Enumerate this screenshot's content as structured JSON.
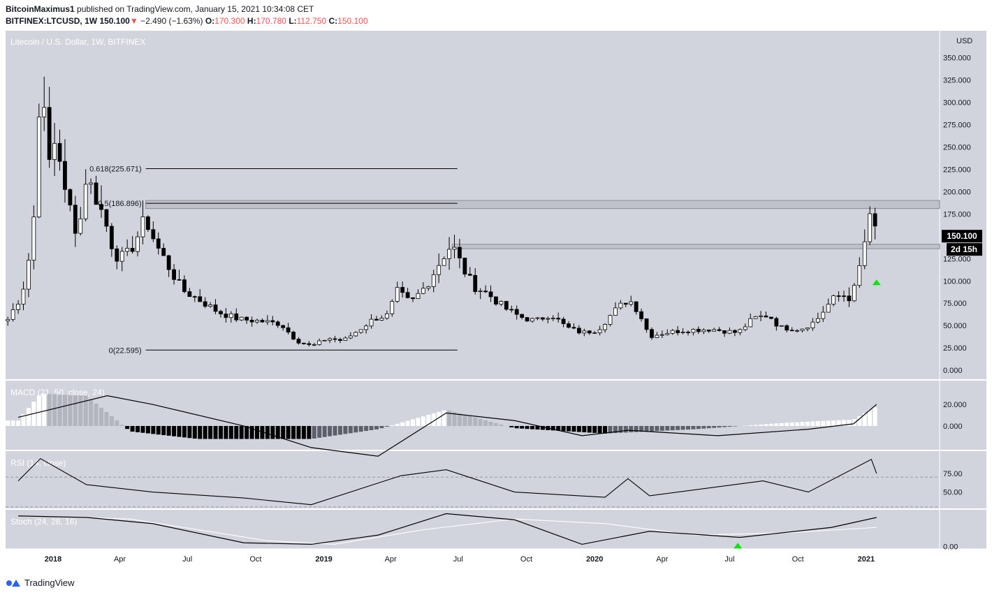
{
  "header": {
    "author": "BitcoinMaximus1",
    "published_text": "published on TradingView.com, January 15, 2021 10:34:08 CET",
    "symbol": "BITFINEX:LTCUSD, 1W",
    "last": "150.100",
    "arrow": "▼",
    "change": "−2.490 (−1.63%)",
    "o_label": "O:",
    "o_value": "170.300",
    "h_label": "H:",
    "h_value": "170.780",
    "l_label": "L:",
    "l_value": "112.750",
    "c_label": "C:",
    "c_value": "150.100"
  },
  "footer": {
    "brand": "TradingView",
    "logo_icon": "tradingview-logo-icon"
  },
  "colors": {
    "pane_bg": "#d1d4dc",
    "up_candle": "#ffffff",
    "down_candle": "#000000",
    "macd_hist_light": "#b2b5be",
    "macd_hist_dark": "#5d606b",
    "signal_marker": "#00e600",
    "price_label_bg": "#000000"
  },
  "chart_data": [
    {
      "type": "candlestick",
      "title": "Litecoin / U.S. Dollar, 1W, BITFINEX",
      "currency": "USD",
      "ylim": [
        -10,
        380
      ],
      "y_ticks": [
        "0.000",
        "25.000",
        "50.000",
        "75.000",
        "100.000",
        "125.000",
        "150.000",
        "175.000",
        "200.000",
        "225.000",
        "250.000",
        "275.000",
        "300.000",
        "325.000",
        "350.000"
      ],
      "x_ticks": [
        "2018",
        "Apr",
        "Jul",
        "Oct",
        "2019",
        "Apr",
        "Jul",
        "Oct",
        "2020",
        "Apr",
        "Jul",
        "Oct",
        "2021"
      ],
      "last_price_label": "150.100",
      "countdown_label": "2d 15h",
      "series": [
        {
          "date": "2017-11-01",
          "close": 57
        },
        {
          "date": "2017-11-20",
          "close": 85
        },
        {
          "date": "2017-12-05",
          "close": 150
        },
        {
          "date": "2017-12-12",
          "close": 300
        },
        {
          "date": "2017-12-19",
          "close": 290
        },
        {
          "date": "2017-12-26",
          "close": 230
        },
        {
          "date": "2018-01-07",
          "close": 270
        },
        {
          "date": "2018-01-14",
          "close": 200
        },
        {
          "date": "2018-01-21",
          "close": 190
        },
        {
          "date": "2018-02-04",
          "close": 150
        },
        {
          "date": "2018-02-14",
          "close": 215
        },
        {
          "date": "2018-02-25",
          "close": 200
        },
        {
          "date": "2018-03-11",
          "close": 170
        },
        {
          "date": "2018-03-25",
          "close": 130
        },
        {
          "date": "2018-04-08",
          "close": 125
        },
        {
          "date": "2018-04-22",
          "close": 145
        },
        {
          "date": "2018-05-06",
          "close": 170
        },
        {
          "date": "2018-05-20",
          "close": 140
        },
        {
          "date": "2018-06-03",
          "close": 120
        },
        {
          "date": "2018-06-24",
          "close": 90
        },
        {
          "date": "2018-07-15",
          "close": 80
        },
        {
          "date": "2018-08-12",
          "close": 65
        },
        {
          "date": "2018-09-09",
          "close": 57
        },
        {
          "date": "2018-10-07",
          "close": 55
        },
        {
          "date": "2018-11-04",
          "close": 52
        },
        {
          "date": "2018-11-25",
          "close": 33
        },
        {
          "date": "2018-12-16",
          "close": 27
        },
        {
          "date": "2019-01-06",
          "close": 36
        },
        {
          "date": "2019-01-27",
          "close": 33
        },
        {
          "date": "2019-02-17",
          "close": 45
        },
        {
          "date": "2019-03-10",
          "close": 58
        },
        {
          "date": "2019-03-31",
          "close": 62
        },
        {
          "date": "2019-04-07",
          "close": 90
        },
        {
          "date": "2019-04-28",
          "close": 75
        },
        {
          "date": "2019-05-19",
          "close": 95
        },
        {
          "date": "2019-06-02",
          "close": 115
        },
        {
          "date": "2019-06-16",
          "close": 135
        },
        {
          "date": "2019-06-23",
          "close": 140
        },
        {
          "date": "2019-07-07",
          "close": 115
        },
        {
          "date": "2019-07-21",
          "close": 95
        },
        {
          "date": "2019-08-11",
          "close": 85
        },
        {
          "date": "2019-09-01",
          "close": 70
        },
        {
          "date": "2019-09-22",
          "close": 60
        },
        {
          "date": "2019-10-13",
          "close": 55
        },
        {
          "date": "2019-11-03",
          "close": 63
        },
        {
          "date": "2019-11-24",
          "close": 48
        },
        {
          "date": "2019-12-15",
          "close": 42
        },
        {
          "date": "2020-01-05",
          "close": 45
        },
        {
          "date": "2020-01-26",
          "close": 65
        },
        {
          "date": "2020-02-16",
          "close": 80
        },
        {
          "date": "2020-03-01",
          "close": 65
        },
        {
          "date": "2020-03-15",
          "close": 38
        },
        {
          "date": "2020-04-05",
          "close": 42
        },
        {
          "date": "2020-05-03",
          "close": 45
        },
        {
          "date": "2020-06-07",
          "close": 46
        },
        {
          "date": "2020-07-12",
          "close": 42
        },
        {
          "date": "2020-08-02",
          "close": 58
        },
        {
          "date": "2020-08-23",
          "close": 62
        },
        {
          "date": "2020-09-06",
          "close": 48
        },
        {
          "date": "2020-10-04",
          "close": 46
        },
        {
          "date": "2020-10-25",
          "close": 55
        },
        {
          "date": "2020-11-15",
          "close": 78
        },
        {
          "date": "2020-11-29",
          "close": 85
        },
        {
          "date": "2020-12-13",
          "close": 80
        },
        {
          "date": "2020-12-20",
          "close": 105
        },
        {
          "date": "2020-12-27",
          "close": 128
        },
        {
          "date": "2021-01-03",
          "close": 165
        },
        {
          "date": "2021-01-10",
          "close": 170
        },
        {
          "date": "2021-01-15",
          "close": 150
        }
      ],
      "fib_levels": [
        {
          "label": "0.618(225.671)",
          "value": 225.671
        },
        {
          "label": "0.5(186.896)",
          "value": 186.896
        },
        {
          "label": "0(22.595)",
          "value": 22.595
        }
      ],
      "resistance_zones": [
        {
          "from": "2018-05-06",
          "low": 181,
          "high": 190
        },
        {
          "from": "2019-06-23",
          "low": 136,
          "high": 141
        }
      ],
      "signal_markers": [
        {
          "date": "2021-01-15",
          "value": 100
        }
      ]
    },
    {
      "type": "line",
      "title": "MACD (21, 50, close, 24)",
      "ylim": [
        -22,
        42
      ],
      "y_ticks": [
        "0.000",
        "20.000"
      ],
      "series": [
        {
          "name": "MACD",
          "x": [
            "2017-11",
            "2018-03",
            "2018-05",
            "2018-09",
            "2018-12",
            "2019-03",
            "2019-06",
            "2019-09",
            "2019-12",
            "2020-02",
            "2020-06",
            "2020-10",
            "2020-12",
            "2021-01-15"
          ],
          "y": [
            8,
            28,
            20,
            0,
            -20,
            -28,
            12,
            5,
            -9,
            -4,
            -9,
            -3,
            2,
            20
          ]
        },
        {
          "name": "Histogram",
          "x": [
            "2017-11",
            "2017-12",
            "2018-02",
            "2018-04",
            "2018-07",
            "2018-12",
            "2019-03",
            "2019-06",
            "2019-09",
            "2020-01",
            "2020-05",
            "2020-09",
            "2020-12",
            "2021-01-15"
          ],
          "y": [
            5,
            30,
            28,
            -5,
            -12,
            -12,
            -3,
            15,
            -2,
            -7,
            -3,
            3,
            6,
            18
          ]
        }
      ]
    },
    {
      "type": "line",
      "title": "RSI (14, close)",
      "ylim": [
        28,
        105
      ],
      "y_ticks": [
        "50.00",
        "75.00"
      ],
      "series": [
        {
          "name": "RSI",
          "x": [
            "2017-11",
            "2017-12",
            "2018-02",
            "2018-05",
            "2018-09",
            "2018-12",
            "2019-04",
            "2019-06",
            "2019-09",
            "2020-01",
            "2020-02",
            "2020-03",
            "2020-08",
            "2020-10",
            "2021-01-08",
            "2021-01-15"
          ],
          "y": [
            65,
            95,
            60,
            50,
            42,
            33,
            72,
            80,
            50,
            43,
            68,
            45,
            65,
            50,
            94,
            75
          ]
        }
      ]
    },
    {
      "type": "line",
      "title": "Stoch (24, 28, 16)",
      "ylim": [
        -3,
        48
      ],
      "y_ticks": [
        "0.00"
      ],
      "series": [
        {
          "name": "%K",
          "x": [
            "2017-11",
            "2018-02",
            "2018-05",
            "2018-09",
            "2018-12",
            "2019-03",
            "2019-06",
            "2019-09",
            "2019-12",
            "2020-03",
            "2020-07",
            "2020-11",
            "2021-01-15"
          ],
          "y": [
            40,
            38,
            30,
            5,
            3,
            15,
            43,
            35,
            3,
            20,
            12,
            25,
            38
          ]
        },
        {
          "name": "%D",
          "x": [
            "2017-11",
            "2018-04",
            "2018-10",
            "2019-01",
            "2019-05",
            "2019-09",
            "2020-01",
            "2020-05",
            "2020-09",
            "2021-01-15"
          ],
          "y": [
            40,
            36,
            8,
            3,
            22,
            36,
            30,
            15,
            18,
            25
          ]
        }
      ],
      "signal_markers": [
        {
          "date": "2020-07-12",
          "value": 3
        }
      ]
    }
  ]
}
